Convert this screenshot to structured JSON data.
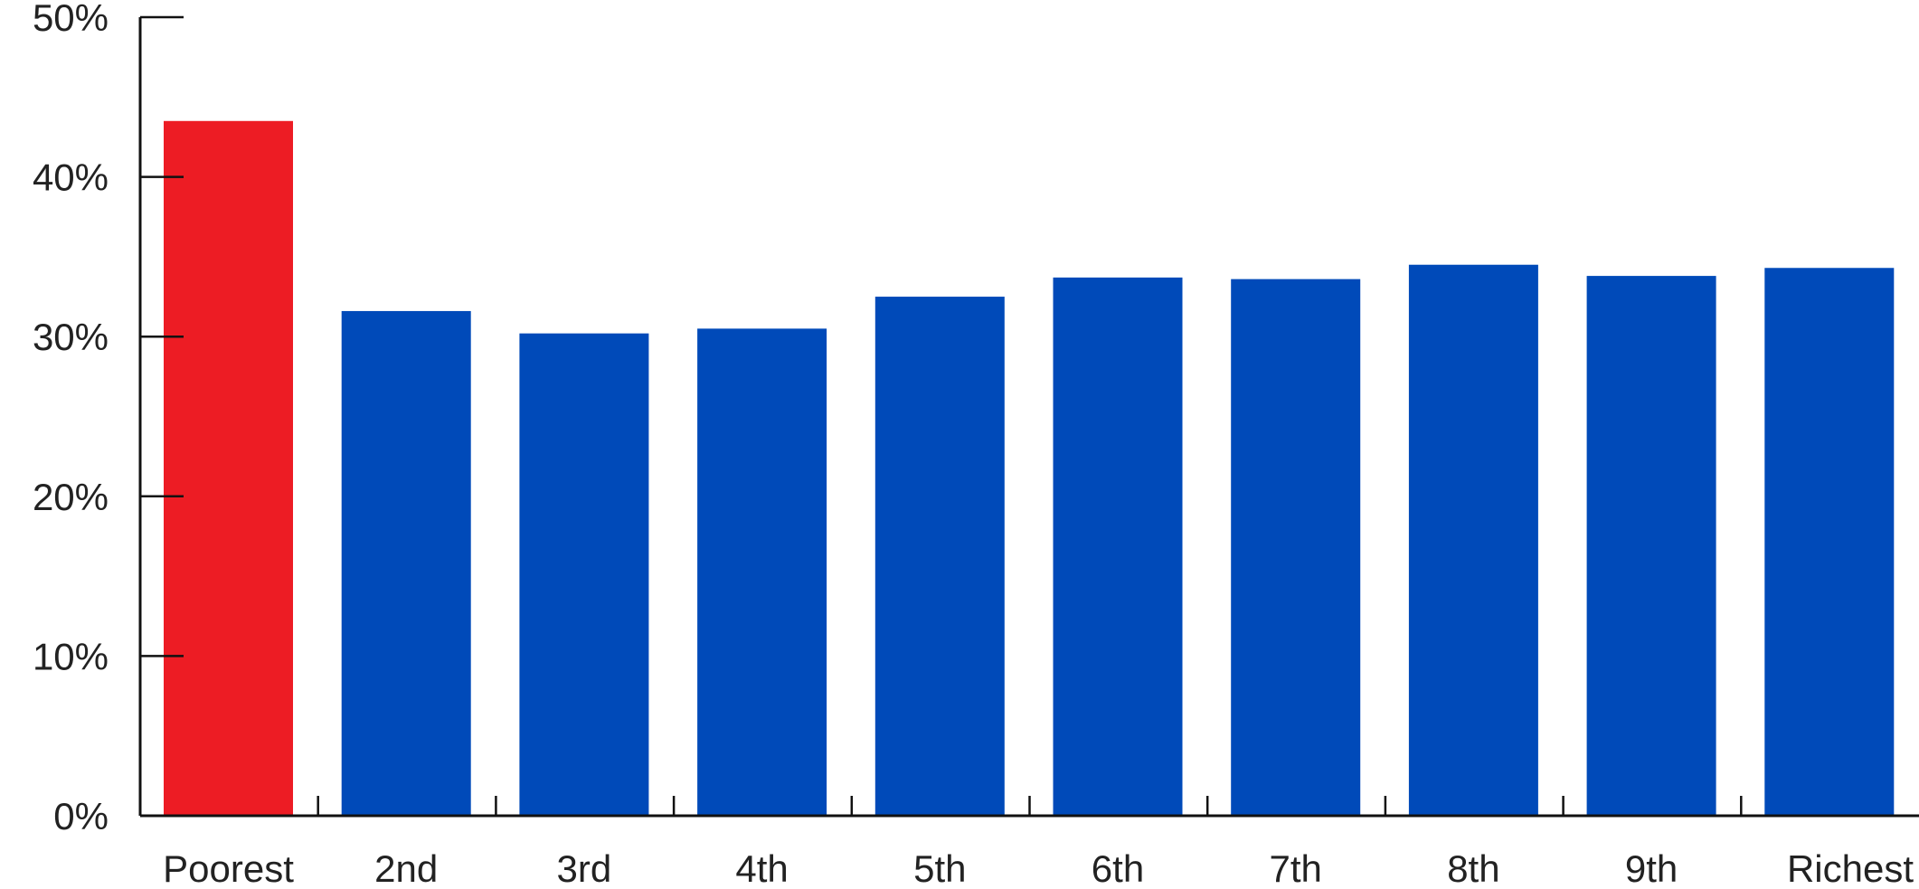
{
  "chart_data": {
    "type": "bar",
    "title": "",
    "xlabel": "",
    "ylabel": "",
    "categories": [
      "Poorest",
      "2nd",
      "3rd",
      "4th",
      "5th",
      "6th",
      "7th",
      "8th",
      "9th",
      "Richest"
    ],
    "values": [
      43.5,
      31.6,
      30.2,
      30.5,
      32.5,
      33.7,
      33.6,
      34.5,
      33.8,
      34.3
    ],
    "colors": [
      "#ed1c24",
      "#004ab9",
      "#004ab9",
      "#004ab9",
      "#004ab9",
      "#004ab9",
      "#004ab9",
      "#004ab9",
      "#004ab9",
      "#004ab9"
    ],
    "highlight_color": "#ed1c24",
    "bar_color": "#004ab9",
    "ylim": [
      0,
      50
    ],
    "yticks": [
      0,
      10,
      20,
      30,
      40,
      50
    ],
    "ytick_labels": [
      "0%",
      "10%",
      "20%",
      "30%",
      "40%",
      "50%"
    ],
    "grid": false,
    "legend": "none"
  }
}
